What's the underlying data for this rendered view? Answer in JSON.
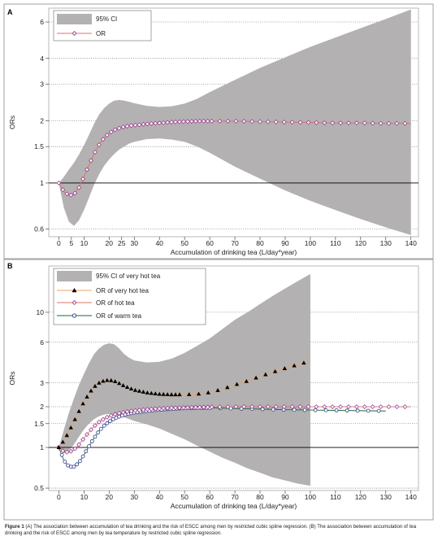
{
  "caption": {
    "label": "Figure 1",
    "text": "(A) The association between accumulation of tea drinking and the risk of ESCC among men by restricted cubic spline regression. (B) The association between accumulation of tea drinking and the risk of ESCC among men by tea temperature by restricted cubic spline regression."
  },
  "colors": {
    "ci_fill": "#b3b1b1",
    "or_line": "#d9746a",
    "or_marker": "#9c3f8e",
    "very_hot_line": "#f0a35e",
    "very_hot_marker": "#000000",
    "warm_line": "#1a6b2f",
    "warm_marker": "#2e3a8c"
  },
  "chart_data": [
    {
      "panel": "A",
      "type": "line",
      "xlabel": "Accumulation of drinking tea (L/day*year)",
      "ylabel": "ORs",
      "yscale": "log",
      "xlim": [
        -4,
        143
      ],
      "ylim": [
        0.55,
        7.0
      ],
      "xticks": [
        0,
        5,
        10,
        20,
        25,
        30,
        40,
        50,
        60,
        70,
        80,
        90,
        100,
        110,
        120,
        130,
        140
      ],
      "xtick_labels": [
        "0",
        "5",
        "10",
        "20",
        "25",
        "30",
        "40",
        "50",
        "60",
        "70",
        "80",
        "90",
        "100",
        "110",
        "120",
        "130",
        "140"
      ],
      "yticks": [
        0.6,
        1,
        1.5,
        2,
        3,
        4,
        6
      ],
      "ytick_labels": [
        "0.6",
        "1",
        "1.5",
        "2",
        "3",
        "4",
        "6"
      ],
      "gridlines_y": [
        0.6,
        1.5,
        2,
        3,
        4,
        6
      ],
      "reference_line": 1,
      "legend_position": "top-left",
      "legend": [
        "95% CI",
        "OR"
      ],
      "series": [
        {
          "name": "OR",
          "x": [
            0,
            2,
            4,
            6,
            8,
            10,
            12,
            14,
            16,
            18,
            20,
            22,
            24,
            26,
            28,
            30,
            35,
            40,
            45,
            50,
            55,
            60,
            70,
            80,
            90,
            100,
            110,
            120,
            130,
            140
          ],
          "y": [
            1.0,
            0.91,
            0.87,
            0.88,
            0.95,
            1.07,
            1.22,
            1.38,
            1.53,
            1.65,
            1.74,
            1.8,
            1.84,
            1.87,
            1.89,
            1.9,
            1.93,
            1.95,
            1.97,
            1.98,
            1.99,
            1.99,
            1.99,
            1.98,
            1.97,
            1.96,
            1.95,
            1.95,
            1.94,
            1.94
          ]
        },
        {
          "name": "95% CI",
          "x": [
            0,
            2,
            4,
            6,
            8,
            10,
            12,
            14,
            16,
            18,
            20,
            22,
            24,
            26,
            28,
            30,
            35,
            40,
            45,
            50,
            55,
            60,
            70,
            80,
            90,
            100,
            110,
            120,
            130,
            140
          ],
          "lower": [
            1.0,
            0.76,
            0.65,
            0.62,
            0.66,
            0.74,
            0.85,
            0.98,
            1.1,
            1.21,
            1.3,
            1.38,
            1.45,
            1.5,
            1.55,
            1.58,
            1.63,
            1.64,
            1.62,
            1.58,
            1.5,
            1.4,
            1.2,
            1.05,
            0.92,
            0.82,
            0.74,
            0.67,
            0.61,
            0.56
          ],
          "upper": [
            1.0,
            1.07,
            1.16,
            1.25,
            1.37,
            1.52,
            1.71,
            1.93,
            2.14,
            2.3,
            2.42,
            2.5,
            2.52,
            2.5,
            2.47,
            2.43,
            2.36,
            2.33,
            2.35,
            2.42,
            2.55,
            2.75,
            3.15,
            3.6,
            4.05,
            4.55,
            5.05,
            5.6,
            6.2,
            6.9
          ]
        }
      ]
    },
    {
      "panel": "B",
      "type": "line",
      "xlabel": "Accumulation of drinking tea (L/day*year)",
      "ylabel": "ORs",
      "yscale": "log",
      "xlim": [
        -4,
        143
      ],
      "ylim": [
        0.48,
        22
      ],
      "xticks": [
        0,
        10,
        20,
        30,
        40,
        50,
        60,
        70,
        80,
        90,
        100,
        110,
        120,
        130,
        140
      ],
      "xtick_labels": [
        "0",
        "10",
        "20",
        "30",
        "40",
        "50",
        "60",
        "70",
        "80",
        "90",
        "100",
        "110",
        "120",
        "130",
        "140"
      ],
      "yticks": [
        0.5,
        1,
        1.5,
        2,
        3,
        6,
        10
      ],
      "ytick_labels": [
        "0.5",
        "1",
        "1.5",
        "2",
        "3",
        "6",
        "10"
      ],
      "gridlines_y": [
        0.5,
        1.5,
        2,
        3,
        6,
        10
      ],
      "reference_line": 1,
      "legend_position": "top-left",
      "legend": [
        "95% CI of very hot tea",
        "OR of very hot tea",
        "OR of hot tea",
        "OR of warm tea"
      ],
      "series": [
        {
          "name": "OR of very hot tea",
          "x": [
            0,
            2,
            4,
            6,
            8,
            10,
            12,
            14,
            16,
            18,
            20,
            22,
            24,
            26,
            28,
            30,
            35,
            40,
            45,
            50,
            55,
            60,
            65,
            70,
            75,
            80,
            85,
            90,
            95,
            100
          ],
          "y": [
            1.0,
            1.12,
            1.3,
            1.55,
            1.85,
            2.17,
            2.5,
            2.8,
            3.0,
            3.12,
            3.15,
            3.1,
            2.98,
            2.85,
            2.75,
            2.66,
            2.54,
            2.48,
            2.46,
            2.46,
            2.48,
            2.55,
            2.7,
            2.9,
            3.1,
            3.35,
            3.6,
            3.85,
            4.1,
            4.35
          ]
        },
        {
          "name": "95% CI of very hot tea",
          "x": [
            0,
            2,
            4,
            6,
            8,
            10,
            12,
            14,
            16,
            18,
            20,
            22,
            24,
            26,
            28,
            30,
            35,
            40,
            45,
            50,
            55,
            60,
            65,
            70,
            75,
            80,
            85,
            90,
            95,
            100
          ],
          "lower": [
            1.0,
            0.9,
            0.95,
            1.05,
            1.2,
            1.36,
            1.5,
            1.62,
            1.7,
            1.75,
            1.77,
            1.75,
            1.71,
            1.67,
            1.62,
            1.57,
            1.48,
            1.38,
            1.26,
            1.15,
            1.03,
            0.93,
            0.84,
            0.77,
            0.7,
            0.65,
            0.6,
            0.57,
            0.54,
            0.52
          ],
          "upper": [
            1.0,
            1.35,
            1.8,
            2.3,
            2.9,
            3.5,
            4.2,
            4.9,
            5.4,
            5.75,
            5.9,
            5.8,
            5.4,
            4.9,
            4.6,
            4.4,
            4.25,
            4.3,
            4.55,
            5.0,
            5.65,
            6.4,
            7.5,
            8.8,
            10.0,
            11.5,
            13.2,
            15.0,
            17.0,
            19.2
          ]
        },
        {
          "name": "OR of hot tea",
          "x": [
            0,
            2,
            4,
            6,
            8,
            10,
            12,
            14,
            16,
            18,
            20,
            22,
            24,
            26,
            28,
            30,
            35,
            40,
            45,
            50,
            55,
            60,
            70,
            80,
            90,
            100,
            110,
            120,
            130,
            140
          ],
          "y": [
            1.0,
            0.93,
            0.92,
            0.96,
            1.05,
            1.17,
            1.3,
            1.43,
            1.54,
            1.63,
            1.7,
            1.75,
            1.79,
            1.82,
            1.85,
            1.87,
            1.91,
            1.94,
            1.96,
            1.97,
            1.98,
            1.99,
            2.0,
            2.0,
            2.0,
            2.0,
            2.0,
            2.0,
            2.0,
            2.0
          ]
        },
        {
          "name": "OR of warm tea",
          "x": [
            0,
            2,
            4,
            6,
            8,
            10,
            12,
            14,
            16,
            18,
            20,
            22,
            24,
            26,
            28,
            30,
            35,
            40,
            45,
            50,
            55,
            60,
            70,
            80,
            90,
            100,
            110,
            120,
            130
          ],
          "y": [
            1.0,
            0.8,
            0.72,
            0.72,
            0.77,
            0.88,
            1.02,
            1.17,
            1.32,
            1.45,
            1.55,
            1.63,
            1.69,
            1.74,
            1.78,
            1.81,
            1.86,
            1.9,
            1.93,
            1.95,
            1.96,
            1.96,
            1.94,
            1.92,
            1.9,
            1.89,
            1.88,
            1.87,
            1.86
          ]
        }
      ]
    }
  ]
}
